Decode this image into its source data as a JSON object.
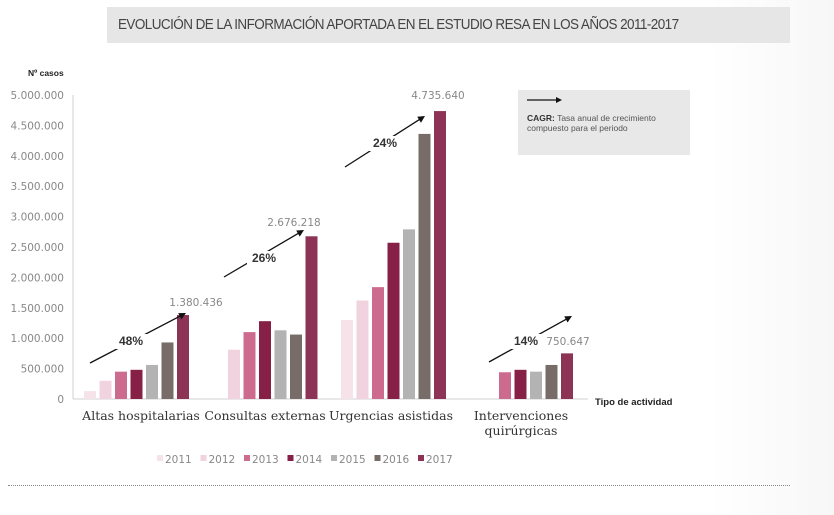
{
  "page": {
    "title": "EVOLUCIÓN DE LA INFORMACIÓN APORTADA EN EL ESTUDIO RESA EN LOS AÑOS 2011-2017",
    "nav_icon": "chevron-left-icon"
  },
  "legend_box": {
    "icon": "arrow-right-icon",
    "term": "CAGR:",
    "description": "Tasa anual de crecimiento compuesto para el periodo"
  },
  "chart_data": {
    "type": "bar",
    "title": "EVOLUCIÓN DE LA INFORMACIÓN APORTADA EN EL ESTUDIO RESA EN LOS AÑOS 2011-2017",
    "ylabel": "Nº casos",
    "xlabel": "Tipo de actividad",
    "ylim": [
      0,
      5000000
    ],
    "yticks": [
      0,
      500000,
      1000000,
      1500000,
      2000000,
      2500000,
      3000000,
      3500000,
      4000000,
      4500000,
      5000000
    ],
    "ytick_labels": [
      "0",
      "500.000",
      "1.000.000",
      "1.500.000",
      "2.000.000",
      "2.500.000",
      "3.000.000",
      "3.500.000",
      "4.000.000",
      "4.500.000",
      "5.000.000"
    ],
    "grid": false,
    "legend_position": "bottom",
    "categories": [
      "Altas hospitalarias",
      "Consultas externas",
      "Urgencias asistidas",
      "Intervenciones quirúrgicas"
    ],
    "series": [
      {
        "name": "2011",
        "color": "#f6e3ea",
        "values": [
          130000,
          null,
          1300000,
          null
        ]
      },
      {
        "name": "2012",
        "color": "#f1d3df",
        "values": [
          300000,
          810000,
          1620000,
          null
        ]
      },
      {
        "name": "2013",
        "color": "#cd6b8f",
        "values": [
          450000,
          1100000,
          1840000,
          440000
        ]
      },
      {
        "name": "2014",
        "color": "#862046",
        "values": [
          480000,
          1280000,
          2570000,
          480000
        ]
      },
      {
        "name": "2015",
        "color": "#b3b3b3",
        "values": [
          560000,
          1130000,
          2790000,
          450000
        ]
      },
      {
        "name": "2016",
        "color": "#776c67",
        "values": [
          930000,
          1060000,
          4360000,
          560000
        ]
      },
      {
        "name": "2017",
        "color": "#8c3356",
        "values": [
          1380436,
          2676218,
          4735640,
          750647
        ]
      }
    ],
    "annotations": [
      {
        "category": "Altas hospitalarias",
        "cagr": "48%",
        "value_label": "1.380.436"
      },
      {
        "category": "Consultas externas",
        "cagr": "26%",
        "value_label": "2.676.218"
      },
      {
        "category": "Urgencias asistidas",
        "cagr": "24%",
        "value_label": "4.735.640"
      },
      {
        "category": "Intervenciones quirúrgicas",
        "cagr": "14%",
        "value_label": "750.647"
      }
    ]
  }
}
